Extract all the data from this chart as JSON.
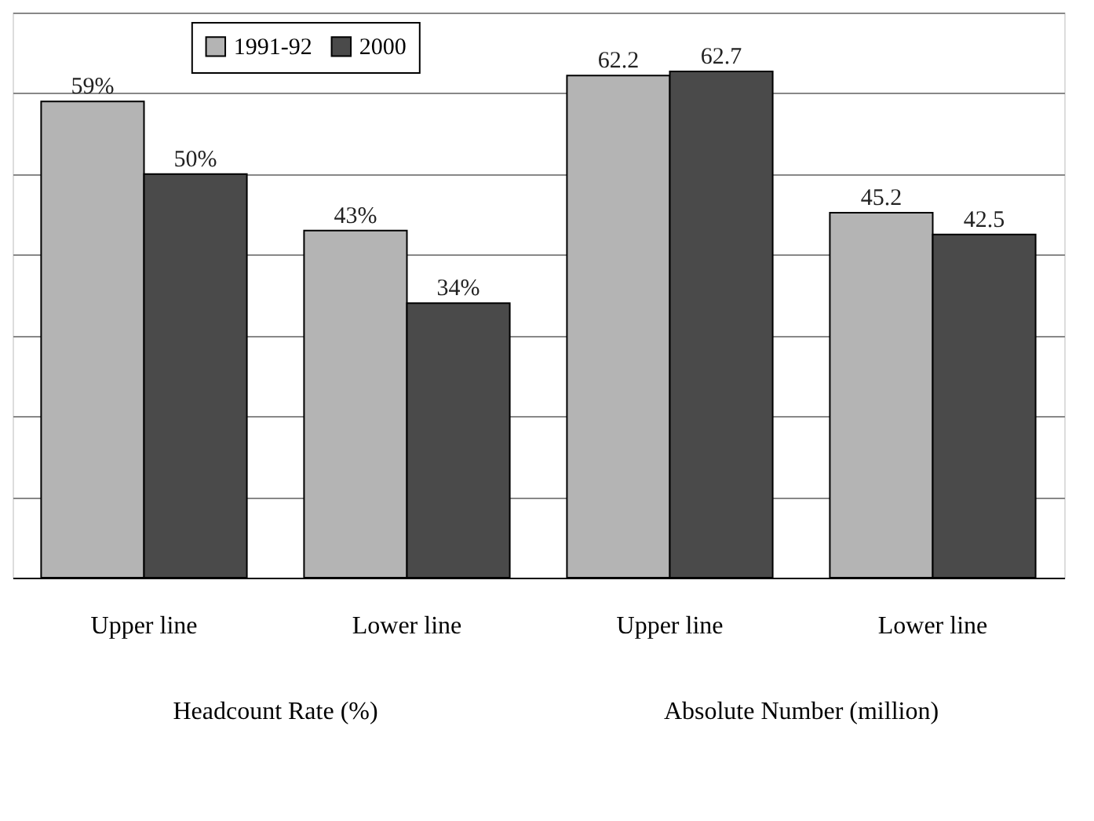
{
  "chart_data": {
    "type": "bar",
    "categories": [
      "Upper line",
      "Lower line",
      "Upper line",
      "Lower line"
    ],
    "series": [
      {
        "name": "1991-92",
        "color": "#b4b4b4",
        "values": [
          59,
          43,
          62.2,
          45.2
        ],
        "value_labels": [
          "59%",
          "43%",
          "62.2",
          "45.2"
        ]
      },
      {
        "name": "2000",
        "color": "#4a4a4a",
        "values": [
          50,
          34,
          62.7,
          42.5
        ],
        "value_labels": [
          "50%",
          "34%",
          "62.7",
          "42.5"
        ]
      }
    ],
    "annotations": [
      "Headcount Rate (%)",
      "Absolute Number (million)"
    ],
    "ylim": [
      0,
      70
    ],
    "yticks": [
      {
        "value": 0,
        "label": null
      },
      {
        "value": 10,
        "label": null
      },
      {
        "value": 20,
        "label": null
      },
      {
        "value": 30,
        "label": null
      },
      {
        "value": 40,
        "label": null
      },
      {
        "value": 50,
        "label": null
      },
      {
        "value": 60,
        "label": null
      },
      {
        "value": 70,
        "label": null
      }
    ],
    "tick_labels": "x",
    "grid": "y",
    "legend": "top left"
  }
}
